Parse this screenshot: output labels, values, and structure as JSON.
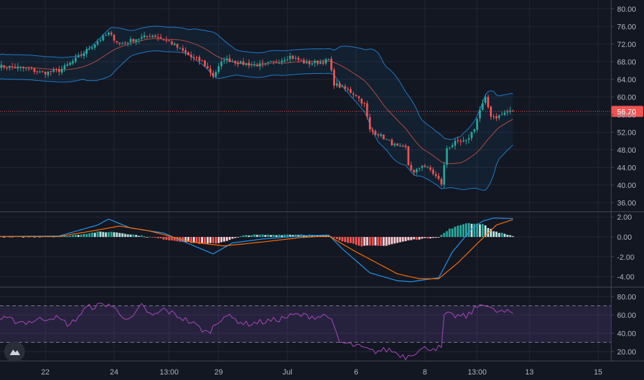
{
  "chart_data": [
    {
      "type": "candlestick",
      "panel": "price",
      "ylim": [
        34,
        82
      ],
      "yticks": [
        "80.00",
        "76.00",
        "72.00",
        "68.00",
        "64.00",
        "60.00",
        "56.00",
        "52.00",
        "48.00",
        "44.00",
        "40.00",
        "36.00"
      ],
      "last_price": "56.70",
      "overlays": [
        "Bollinger upper",
        "Bollinger middle",
        "Bollinger lower"
      ],
      "anchors": [
        [
          0,
          67.0
        ],
        [
          10,
          66.4
        ],
        [
          16,
          65.4
        ],
        [
          22,
          66.0
        ],
        [
          26,
          67.6
        ],
        [
          30,
          69.5
        ],
        [
          36,
          72.6
        ],
        [
          40,
          74.4
        ],
        [
          44,
          72.0
        ],
        [
          50,
          73.2
        ],
        [
          56,
          74.0
        ],
        [
          62,
          72.6
        ],
        [
          70,
          69.0
        ],
        [
          74,
          68.0
        ],
        [
          78,
          64.8
        ],
        [
          82,
          68.6
        ],
        [
          88,
          67.6
        ],
        [
          96,
          67.2
        ],
        [
          102,
          68.2
        ],
        [
          106,
          69.2
        ],
        [
          112,
          67.6
        ],
        [
          118,
          68.0
        ],
        [
          120,
          68.4
        ],
        [
          122,
          63.0
        ],
        [
          126,
          61.8
        ],
        [
          130,
          60.4
        ],
        [
          133,
          58.2
        ],
        [
          135,
          52.4
        ],
        [
          138,
          51.6
        ],
        [
          142,
          49.8
        ],
        [
          145,
          48.6
        ],
        [
          148,
          48.4
        ],
        [
          149,
          44.6
        ],
        [
          151,
          42.6
        ],
        [
          154,
          44.6
        ],
        [
          157,
          43.4
        ],
        [
          160,
          41.2
        ],
        [
          161,
          40.3
        ],
        [
          163,
          48.4
        ],
        [
          166,
          49.6
        ],
        [
          170,
          49.8
        ],
        [
          173,
          53.0
        ],
        [
          175,
          57.0
        ],
        [
          177,
          59.6
        ],
        [
          179,
          55.8
        ],
        [
          181,
          55.4
        ],
        [
          183,
          56.0
        ],
        [
          185,
          56.7
        ],
        [
          187,
          56.7
        ]
      ],
      "color_up": "#26a69a",
      "color_down": "#ef5350"
    },
    {
      "type": "macd",
      "panel": "macd",
      "ylim": [
        -5,
        2.5
      ],
      "yticks": [
        "2.00",
        "0.00",
        "-2.00",
        "-4.00"
      ],
      "macd": [
        [
          0,
          0.05
        ],
        [
          22,
          0.1
        ],
        [
          36,
          1.2
        ],
        [
          40,
          1.8
        ],
        [
          48,
          0.9
        ],
        [
          60,
          0.4
        ],
        [
          78,
          -1.7
        ],
        [
          85,
          -0.6
        ],
        [
          96,
          -0.2
        ],
        [
          110,
          0.1
        ],
        [
          120,
          0.2
        ],
        [
          125,
          -1.2
        ],
        [
          135,
          -3.6
        ],
        [
          145,
          -4.4
        ],
        [
          150,
          -4.5
        ],
        [
          160,
          -4.1
        ],
        [
          165,
          -1.5
        ],
        [
          172,
          0.8
        ],
        [
          176,
          1.6
        ],
        [
          180,
          1.9
        ],
        [
          187,
          1.85
        ]
      ],
      "signal": [
        [
          0,
          0.05
        ],
        [
          22,
          0.05
        ],
        [
          36,
          0.7
        ],
        [
          44,
          1.1
        ],
        [
          55,
          0.6
        ],
        [
          70,
          -0.5
        ],
        [
          82,
          -0.9
        ],
        [
          96,
          -0.5
        ],
        [
          110,
          -0.05
        ],
        [
          120,
          0.1
        ],
        [
          130,
          -1.5
        ],
        [
          145,
          -3.7
        ],
        [
          153,
          -4.2
        ],
        [
          160,
          -4.2
        ],
        [
          167,
          -2.6
        ],
        [
          175,
          -0.4
        ],
        [
          181,
          1.2
        ],
        [
          187,
          1.75
        ]
      ],
      "histogram": [
        [
          0,
          0.0
        ],
        [
          25,
          0.1
        ],
        [
          36,
          0.5
        ],
        [
          42,
          0.5
        ],
        [
          50,
          0.2
        ],
        [
          62,
          -0.3
        ],
        [
          74,
          -0.7
        ],
        [
          80,
          -0.6
        ],
        [
          90,
          0.2
        ],
        [
          110,
          0.25
        ],
        [
          120,
          0.1
        ],
        [
          125,
          -0.4
        ],
        [
          132,
          -0.9
        ],
        [
          140,
          -0.9
        ],
        [
          150,
          -0.3
        ],
        [
          160,
          0.0
        ],
        [
          164,
          0.8
        ],
        [
          170,
          1.4
        ],
        [
          176,
          1.3
        ],
        [
          180,
          0.6
        ],
        [
          187,
          0.1
        ]
      ],
      "color_macd": "#2196f3",
      "color_signal": "#ff6d00",
      "color_hist_up": "#26a69a",
      "color_hist_down": "#ef5350"
    },
    {
      "type": "rsi",
      "panel": "rsi",
      "ylim": [
        10,
        90
      ],
      "yticks": [
        "80.00",
        "60.00",
        "40.00",
        "20.00"
      ],
      "bands": [
        30,
        70
      ],
      "rsi": [
        [
          0,
          56
        ],
        [
          10,
          52
        ],
        [
          20,
          58
        ],
        [
          26,
          49
        ],
        [
          32,
          68
        ],
        [
          40,
          72
        ],
        [
          44,
          62
        ],
        [
          48,
          54
        ],
        [
          52,
          70
        ],
        [
          56,
          58
        ],
        [
          60,
          66
        ],
        [
          70,
          52
        ],
        [
          76,
          40
        ],
        [
          82,
          60
        ],
        [
          90,
          50
        ],
        [
          100,
          54
        ],
        [
          108,
          60
        ],
        [
          116,
          58
        ],
        [
          120,
          60
        ],
        [
          124,
          30
        ],
        [
          130,
          26
        ],
        [
          136,
          20
        ],
        [
          142,
          22
        ],
        [
          148,
          14
        ],
        [
          150,
          18
        ],
        [
          156,
          24
        ],
        [
          160,
          24
        ],
        [
          161,
          22
        ],
        [
          162,
          60
        ],
        [
          170,
          58
        ],
        [
          176,
          74
        ],
        [
          180,
          64
        ],
        [
          187,
          62
        ]
      ],
      "color": "#ab47bc"
    }
  ],
  "time_axis": {
    "ticks": [
      {
        "label": "22",
        "bar": 17
      },
      {
        "label": "24",
        "bar": 42
      },
      {
        "label": "13:00",
        "bar": 62
      },
      {
        "label": "29",
        "bar": 80
      },
      {
        "label": "Jul",
        "bar": 105
      },
      {
        "label": "6",
        "bar": 130
      },
      {
        "label": "8",
        "bar": 155
      },
      {
        "label": "13:00",
        "bar": 174
      },
      {
        "label": "13",
        "bar": 193
      },
      {
        "label": "15",
        "bar": 218
      }
    ]
  },
  "logo_icon": "tradingview-cloud-icon"
}
